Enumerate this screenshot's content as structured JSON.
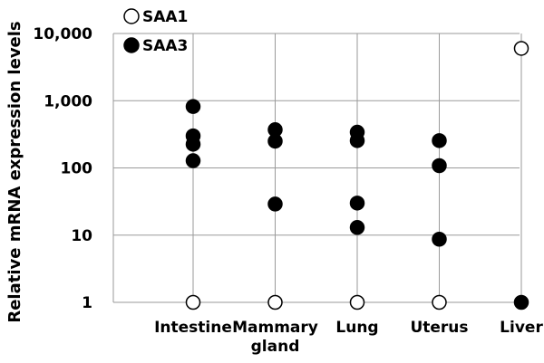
{
  "chart_data": {
    "type": "scatter",
    "y_scale": "log",
    "ylim": [
      1,
      10000
    ],
    "ylabel": "Relative mRNA expression levels",
    "y_ticks": [
      "1",
      "10",
      "100",
      "1,000",
      "10,000"
    ],
    "y_tick_values": [
      1,
      10,
      100,
      1000,
      10000
    ],
    "categories": [
      {
        "lines": [
          "Intestine"
        ]
      },
      {
        "lines": [
          "Mammary",
          "gland"
        ]
      },
      {
        "lines": [
          "Lung"
        ]
      },
      {
        "lines": [
          "Uterus"
        ]
      },
      {
        "lines": [
          "Liver"
        ]
      }
    ],
    "grid": true,
    "legend_position": "top-left",
    "series": [
      {
        "name": "SAA1",
        "marker": "open-circle",
        "points": [
          [
            0,
            1
          ],
          [
            1,
            1
          ],
          [
            2,
            1
          ],
          [
            3,
            1
          ],
          [
            4,
            6000
          ]
        ]
      },
      {
        "name": "SAA3",
        "marker": "filled-circle",
        "points": [
          [
            0,
            820
          ],
          [
            0,
            300
          ],
          [
            0,
            225
          ],
          [
            0,
            128
          ],
          [
            1,
            370
          ],
          [
            1,
            250
          ],
          [
            1,
            29
          ],
          [
            2,
            340
          ],
          [
            2,
            255
          ],
          [
            2,
            30
          ],
          [
            2,
            13
          ],
          [
            3,
            255
          ],
          [
            3,
            108
          ],
          [
            3,
            8.7
          ],
          [
            4,
            1
          ]
        ]
      }
    ]
  }
}
